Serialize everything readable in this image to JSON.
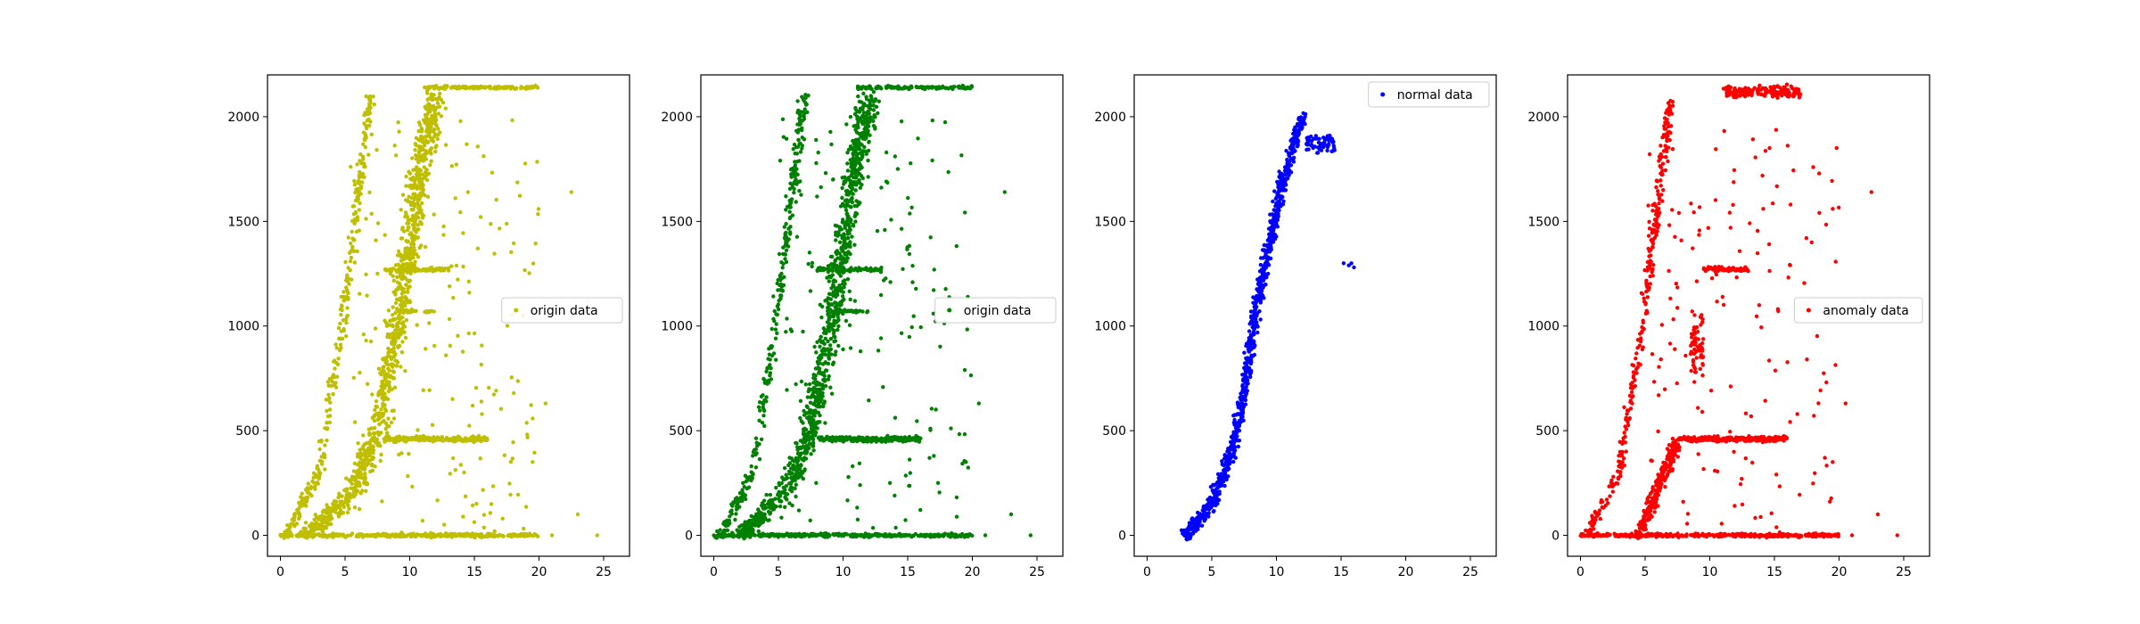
{
  "chart_data": [
    {
      "type": "scatter",
      "color": "#bfbf00",
      "legend": {
        "label": "origin data",
        "placement": "center-right"
      },
      "xlim": [
        -1,
        27
      ],
      "ylim": [
        -100,
        2200
      ],
      "xticks": [
        0,
        5,
        10,
        15,
        20,
        25
      ],
      "yticks": [
        0,
        500,
        1000,
        1500,
        2000
      ],
      "series": [
        {
          "name": "origin data",
          "bands": [
            {
              "kind": "curve",
              "pts": [
                [
                  0.5,
                  0
                ],
                [
                  3,
                  300
                ],
                [
                  4.8,
                  1000
                ],
                [
                  6,
                  1600
                ],
                [
                  7,
                  2100
                ]
              ],
              "spread": 0.5,
              "n": 300
            },
            {
              "kind": "curve",
              "pts": [
                [
                  2,
                  0
                ],
                [
                  5.5,
                  200
                ],
                [
                  7.5,
                  500
                ],
                [
                  9,
                  1000
                ],
                [
                  10,
                  1400
                ],
                [
                  11,
                  1800
                ],
                [
                  12,
                  2100
                ]
              ],
              "spread": 1.2,
              "n": 1000
            },
            {
              "kind": "row",
              "x": [
                0,
                20
              ],
              "y": 0,
              "spread": 12,
              "n": 380
            },
            {
              "kind": "row",
              "x": [
                8,
                16
              ],
              "y": 460,
              "spread": 18,
              "n": 240
            },
            {
              "kind": "row",
              "x": [
                8,
                13
              ],
              "y": 1270,
              "spread": 15,
              "n": 70
            },
            {
              "kind": "row",
              "x": [
                9,
                12
              ],
              "y": 1070,
              "spread": 10,
              "n": 35
            },
            {
              "kind": "row",
              "x": [
                11,
                20
              ],
              "y": 2140,
              "spread": 10,
              "n": 130
            },
            {
              "kind": "rect",
              "x": [
                5,
                20
              ],
              "y": [
                0,
                2000
              ],
              "n": 170
            },
            {
              "kind": "points",
              "pts": [
                [
                  22.5,
                  1640
                ],
                [
                  23,
                  100
                ],
                [
                  21,
                  0
                ],
                [
                  24.5,
                  0
                ],
                [
                  20.5,
                  630
                ],
                [
                  19.5,
                  350
                ]
              ]
            }
          ]
        }
      ]
    },
    {
      "type": "scatter",
      "color": "#008000",
      "legend": {
        "label": "origin data",
        "placement": "center-right"
      },
      "xlim": [
        -1,
        27
      ],
      "ylim": [
        -100,
        2200
      ],
      "xticks": [
        0,
        5,
        10,
        15,
        20,
        25
      ],
      "yticks": [
        0,
        500,
        1000,
        1500,
        2000
      ],
      "series": [
        {
          "name": "origin data",
          "bands": [
            {
              "kind": "curve",
              "pts": [
                [
                  0.5,
                  0
                ],
                [
                  3,
                  300
                ],
                [
                  4.8,
                  1000
                ],
                [
                  6,
                  1600
                ],
                [
                  7,
                  2100
                ]
              ],
              "spread": 0.5,
              "n": 300
            },
            {
              "kind": "curve",
              "pts": [
                [
                  2,
                  0
                ],
                [
                  5.5,
                  200
                ],
                [
                  7.5,
                  500
                ],
                [
                  9,
                  1000
                ],
                [
                  10,
                  1400
                ],
                [
                  11,
                  1800
                ],
                [
                  12,
                  2100
                ]
              ],
              "spread": 1.2,
              "n": 1000
            },
            {
              "kind": "row",
              "x": [
                0,
                20
              ],
              "y": 0,
              "spread": 12,
              "n": 380
            },
            {
              "kind": "row",
              "x": [
                8,
                16
              ],
              "y": 460,
              "spread": 18,
              "n": 240
            },
            {
              "kind": "row",
              "x": [
                8,
                13
              ],
              "y": 1270,
              "spread": 15,
              "n": 70
            },
            {
              "kind": "row",
              "x": [
                9,
                12
              ],
              "y": 1070,
              "spread": 10,
              "n": 35
            },
            {
              "kind": "row",
              "x": [
                11,
                20
              ],
              "y": 2140,
              "spread": 10,
              "n": 130
            },
            {
              "kind": "rect",
              "x": [
                5,
                20
              ],
              "y": [
                0,
                2000
              ],
              "n": 170
            },
            {
              "kind": "points",
              "pts": [
                [
                  22.5,
                  1640
                ],
                [
                  23,
                  100
                ],
                [
                  21,
                  0
                ],
                [
                  24.5,
                  0
                ],
                [
                  20.5,
                  630
                ],
                [
                  19.5,
                  350
                ]
              ]
            }
          ]
        }
      ]
    },
    {
      "type": "scatter",
      "color": "#0000ff",
      "legend": {
        "label": "normal data",
        "placement": "upper right"
      },
      "xlim": [
        -1,
        27
      ],
      "ylim": [
        -100,
        2200
      ],
      "xticks": [
        0,
        5,
        10,
        15,
        20,
        25
      ],
      "yticks": [
        0,
        500,
        1000,
        1500,
        2000
      ],
      "series": [
        {
          "name": "normal data",
          "bands": [
            {
              "kind": "curve",
              "pts": [
                [
                  3,
                  0
                ],
                [
                  5,
                  150
                ],
                [
                  6.5,
                  400
                ],
                [
                  7.5,
                  700
                ],
                [
                  8.5,
                  1100
                ],
                [
                  9.5,
                  1400
                ],
                [
                  10.5,
                  1700
                ],
                [
                  12,
                  2000
                ]
              ],
              "spread": 0.55,
              "n": 900
            },
            {
              "kind": "row",
              "x": [
                12,
                14.5
              ],
              "y": 1870,
              "spread": 80,
              "n": 60
            },
            {
              "kind": "points",
              "pts": [
                [
                  15.2,
                  1300
                ],
                [
                  15.6,
                  1290
                ],
                [
                  16,
                  1280
                ],
                [
                  15.8,
                  1300
                ]
              ]
            }
          ]
        }
      ]
    },
    {
      "type": "scatter",
      "color": "#ff0000",
      "legend": {
        "label": "anomaly data",
        "placement": "center-right"
      },
      "xlim": [
        -1,
        27
      ],
      "ylim": [
        -100,
        2200
      ],
      "xticks": [
        0,
        5,
        10,
        15,
        20,
        25
      ],
      "yticks": [
        0,
        500,
        1000,
        1500,
        2000
      ],
      "series": [
        {
          "name": "anomaly data",
          "bands": [
            {
              "kind": "curve",
              "pts": [
                [
                  0.5,
                  0
                ],
                [
                  3,
                  300
                ],
                [
                  4.8,
                  1000
                ],
                [
                  6,
                  1600
                ],
                [
                  7,
                  2100
                ]
              ],
              "spread": 0.5,
              "n": 300
            },
            {
              "kind": "curve",
              "pts": [
                [
                  4.5,
                  0
                ],
                [
                  5.5,
                  150
                ],
                [
                  6.5,
                  300
                ],
                [
                  7.5,
                  450
                ]
              ],
              "spread": 0.6,
              "n": 250
            },
            {
              "kind": "row",
              "x": [
                0,
                20
              ],
              "y": 0,
              "spread": 12,
              "n": 380
            },
            {
              "kind": "row",
              "x": [
                7.5,
                16
              ],
              "y": 460,
              "spread": 18,
              "n": 260
            },
            {
              "kind": "row",
              "x": [
                9.5,
                13
              ],
              "y": 1270,
              "spread": 15,
              "n": 80
            },
            {
              "kind": "row",
              "x": [
                8.5,
                9.5
              ],
              "y": 900,
              "spread": 200,
              "n": 60
            },
            {
              "kind": "row",
              "x": [
                11,
                17
              ],
              "y": 2120,
              "spread": 40,
              "n": 170
            },
            {
              "kind": "rect",
              "x": [
                5,
                20
              ],
              "y": [
                0,
                2000
              ],
              "n": 150
            },
            {
              "kind": "points",
              "pts": [
                [
                  22.5,
                  1640
                ],
                [
                  23,
                  100
                ],
                [
                  21,
                  0
                ],
                [
                  24.5,
                  0
                ],
                [
                  20.5,
                  630
                ],
                [
                  19.5,
                  350
                ]
              ]
            }
          ]
        }
      ]
    }
  ]
}
